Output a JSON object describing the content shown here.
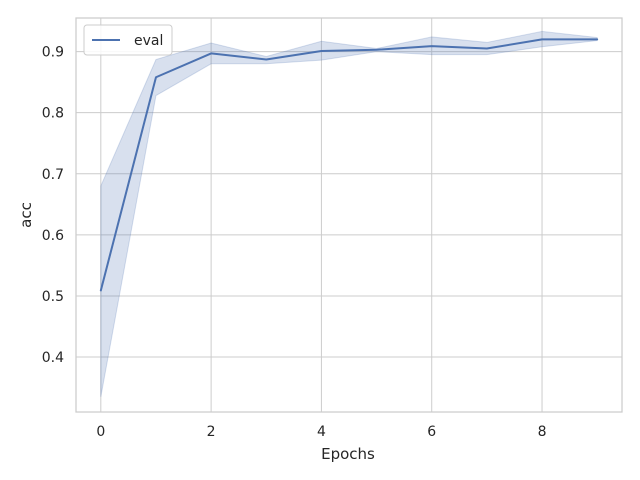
{
  "chart_data": {
    "type": "line",
    "xlabel": "Epochs",
    "ylabel": "acc",
    "xlim": [
      -0.45,
      9.45
    ],
    "ylim": [
      0.31,
      0.955
    ],
    "x_ticks": [
      0,
      2,
      4,
      6,
      8
    ],
    "y_ticks": [
      0.4,
      0.5,
      0.6,
      0.7,
      0.8,
      0.9
    ],
    "grid": true,
    "legend_position": "top-left",
    "colors": {
      "line": "#4c72b0",
      "band": "#4c72b0",
      "grid": "#cccccc",
      "spine": "#cccccc"
    },
    "series": [
      {
        "name": "eval",
        "x": [
          0,
          1,
          2,
          3,
          4,
          5,
          6,
          7,
          8,
          9
        ],
        "y": [
          0.509,
          0.858,
          0.897,
          0.887,
          0.901,
          0.903,
          0.909,
          0.905,
          0.92,
          0.92
        ],
        "lower": [
          0.335,
          0.828,
          0.88,
          0.88,
          0.886,
          0.9,
          0.895,
          0.895,
          0.908,
          0.918
        ],
        "upper": [
          0.68,
          0.887,
          0.914,
          0.892,
          0.917,
          0.905,
          0.924,
          0.915,
          0.933,
          0.923
        ]
      }
    ]
  }
}
